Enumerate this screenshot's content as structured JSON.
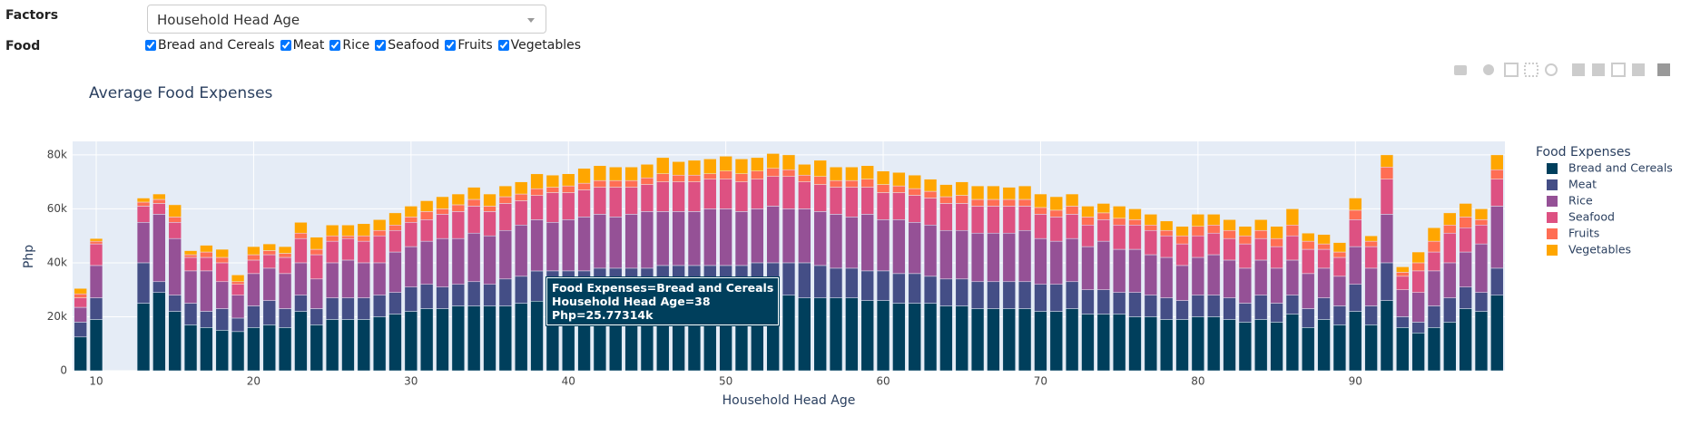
{
  "controls": {
    "factors_label": "Factors",
    "food_label": "Food",
    "dropdown_value": "Household Head Age",
    "food_options": [
      "Bread and Cereals",
      "Meat",
      "Rice",
      "Seafood",
      "Fruits",
      "Vegetables"
    ]
  },
  "hover": {
    "lines": [
      "Food Expenses=Bread and Cereals",
      "Household Head Age=38",
      "Php=25.77314k"
    ]
  },
  "chart_data": {
    "type": "bar",
    "stacked": true,
    "title": "Average Food Expenses",
    "x_label": "Household Head Age",
    "y_label": "Php",
    "legend_title": "Food Expenses",
    "legend": "right",
    "x": [
      9,
      10,
      13,
      14,
      15,
      16,
      17,
      18,
      19,
      20,
      21,
      22,
      23,
      24,
      25,
      26,
      27,
      28,
      29,
      30,
      31,
      32,
      33,
      34,
      35,
      36,
      37,
      38,
      39,
      40,
      41,
      42,
      43,
      44,
      45,
      46,
      47,
      48,
      49,
      50,
      51,
      52,
      53,
      54,
      55,
      56,
      57,
      58,
      59,
      60,
      61,
      62,
      63,
      64,
      65,
      66,
      67,
      68,
      69,
      70,
      71,
      72,
      73,
      74,
      75,
      76,
      77,
      78,
      79,
      80,
      81,
      82,
      83,
      84,
      85,
      86,
      87,
      88,
      89,
      90,
      91,
      92,
      93,
      94,
      95,
      96,
      97,
      98,
      99
    ],
    "xlim": [
      8.5,
      99.5
    ],
    "xticks": [
      10,
      20,
      30,
      40,
      50,
      60,
      70,
      80,
      90
    ],
    "ylim": [
      0,
      85000
    ],
    "yticks": [
      0,
      {
        "value": 20000,
        "label": "20k"
      },
      {
        "value": 40000,
        "label": "40k"
      },
      {
        "value": 60000,
        "label": "60k"
      },
      {
        "value": 80000,
        "label": "80k"
      }
    ],
    "grid": true,
    "series": [
      {
        "name": "Bread and Cereals",
        "color": "#003f5c",
        "values": [
          12500,
          19000,
          25000,
          29000,
          22000,
          17000,
          16000,
          15000,
          14500,
          16000,
          17000,
          16000,
          22000,
          17000,
          19000,
          19000,
          19000,
          20000,
          21000,
          22000,
          23000,
          23000,
          24000,
          24000,
          24000,
          24000,
          25000,
          25773.14,
          27000,
          27000,
          27000,
          27000,
          27000,
          27000,
          27000,
          27000,
          27000,
          27000,
          27000,
          27000,
          27000,
          27000,
          28000,
          28000,
          27000,
          27000,
          27000,
          27000,
          26000,
          26000,
          25000,
          25000,
          25000,
          24000,
          24000,
          23000,
          23000,
          23000,
          23000,
          22000,
          22000,
          23000,
          21000,
          21000,
          21000,
          20000,
          20000,
          19000,
          19000,
          20000,
          20000,
          19000,
          18000,
          19000,
          18000,
          21000,
          16000,
          19000,
          17000,
          22000,
          17000,
          26000,
          16000,
          14000,
          16000,
          18000,
          23000,
          22000,
          28000
        ]
      },
      {
        "name": "Meat",
        "color": "#444e86",
        "values": [
          5500,
          8000,
          15000,
          4000,
          6000,
          8000,
          6000,
          8000,
          5000,
          8000,
          9000,
          7000,
          6000,
          6000,
          8000,
          8000,
          8000,
          8000,
          8000,
          9000,
          9000,
          8000,
          8000,
          9000,
          8000,
          10000,
          10000,
          11200,
          10000,
          10000,
          10000,
          11000,
          11000,
          11000,
          11000,
          12000,
          12000,
          12000,
          12000,
          12000,
          12000,
          13000,
          12000,
          12000,
          13000,
          12000,
          11000,
          11000,
          11000,
          11000,
          11000,
          11000,
          10000,
          10000,
          10000,
          10000,
          10000,
          10000,
          10000,
          10000,
          10000,
          10000,
          9000,
          9000,
          8000,
          9000,
          8000,
          8000,
          7000,
          8000,
          8000,
          8000,
          7000,
          9000,
          7000,
          7000,
          7000,
          8000,
          7000,
          10000,
          7000,
          14000,
          4000,
          4000,
          8000,
          9000,
          8000,
          7000,
          10000
        ]
      },
      {
        "name": "Rice",
        "color": "#955196",
        "values": [
          5500,
          12000,
          15000,
          25000,
          21000,
          12000,
          15000,
          10000,
          8500,
          12000,
          12000,
          13000,
          12000,
          11000,
          13000,
          14000,
          13000,
          12000,
          15000,
          15000,
          16000,
          18000,
          17000,
          18000,
          18000,
          18000,
          19000,
          19000,
          18000,
          19000,
          20000,
          20000,
          19000,
          20000,
          21000,
          20000,
          20000,
          20000,
          21000,
          21000,
          20000,
          20000,
          21000,
          20000,
          20000,
          20000,
          20000,
          19000,
          21000,
          19000,
          20000,
          19000,
          19000,
          18000,
          18000,
          18000,
          18000,
          18000,
          19000,
          17000,
          16000,
          16000,
          16000,
          18000,
          16000,
          16000,
          15000,
          15000,
          13000,
          14000,
          15000,
          14000,
          13000,
          13000,
          13000,
          13000,
          13000,
          11000,
          11000,
          14000,
          14000,
          18000,
          10000,
          11000,
          13000,
          13000,
          13000,
          18000,
          23000
        ]
      },
      {
        "name": "Seafood",
        "color": "#dd5182",
        "values": [
          3500,
          8000,
          6000,
          4000,
          6000,
          5000,
          5000,
          7000,
          4000,
          5000,
          5000,
          6000,
          9000,
          9000,
          8000,
          8000,
          8000,
          10000,
          8000,
          9000,
          8000,
          9000,
          10000,
          10000,
          9000,
          10000,
          9000,
          9000,
          11000,
          10000,
          10000,
          10000,
          11000,
          10000,
          10000,
          11000,
          11000,
          11000,
          11000,
          11000,
          11000,
          11000,
          11000,
          12000,
          10000,
          10000,
          10000,
          11000,
          10000,
          10000,
          10000,
          10000,
          10000,
          10000,
          10000,
          10000,
          10000,
          10000,
          9000,
          9000,
          9000,
          9000,
          8000,
          8000,
          9000,
          9000,
          9000,
          8000,
          8000,
          8000,
          8000,
          8000,
          9000,
          8000,
          8000,
          9000,
          9000,
          7000,
          7000,
          10000,
          8000,
          13000,
          5000,
          8000,
          7000,
          11000,
          9000,
          7000,
          10000
        ]
      },
      {
        "name": "Fruits",
        "color": "#ff6e54",
        "values": [
          1500,
          1000,
          1500,
          1500,
          2000,
          1000,
          2000,
          2000,
          1000,
          2000,
          1500,
          1500,
          2000,
          2000,
          2000,
          1000,
          2000,
          2000,
          2000,
          2000,
          3000,
          2000,
          2500,
          2500,
          2000,
          2500,
          2500,
          2500,
          2000,
          2500,
          2500,
          2500,
          2500,
          2500,
          2500,
          3000,
          2500,
          2500,
          2000,
          3000,
          3000,
          3000,
          3000,
          2500,
          2500,
          3000,
          2500,
          2500,
          3000,
          3000,
          2500,
          2500,
          2500,
          2500,
          3000,
          2500,
          2500,
          2500,
          2500,
          2500,
          2500,
          3000,
          3000,
          2500,
          2500,
          2000,
          2000,
          2000,
          3000,
          3500,
          3000,
          3000,
          3000,
          3000,
          3000,
          4000,
          3000,
          2000,
          2000,
          3500,
          2000,
          4500,
          1500,
          3000,
          4000,
          3000,
          4000,
          2000,
          3500
        ]
      },
      {
        "name": "Vegetables",
        "color": "#ffa600",
        "values": [
          2000,
          1000,
          1500,
          2000,
          4500,
          1500,
          2500,
          3000,
          2500,
          3000,
          2500,
          2500,
          4000,
          4500,
          4000,
          4000,
          4500,
          4000,
          4500,
          4000,
          4000,
          4500,
          4000,
          4500,
          4500,
          4000,
          4500,
          5500,
          4500,
          4500,
          5500,
          5500,
          5000,
          5000,
          5000,
          6000,
          5000,
          5500,
          5500,
          5500,
          5500,
          5000,
          5500,
          5500,
          4000,
          6000,
          5000,
          5000,
          5000,
          5000,
          5000,
          5000,
          4500,
          4500,
          5000,
          5000,
          5000,
          4500,
          5000,
          5000,
          5000,
          4500,
          4000,
          3500,
          4500,
          4000,
          4000,
          3500,
          3500,
          4500,
          4000,
          4000,
          3500,
          4000,
          4500,
          6000,
          3000,
          3500,
          3500,
          4500,
          2000,
          4500,
          2000,
          4000,
          5000,
          4500,
          5000,
          4000,
          5500
        ]
      }
    ]
  }
}
